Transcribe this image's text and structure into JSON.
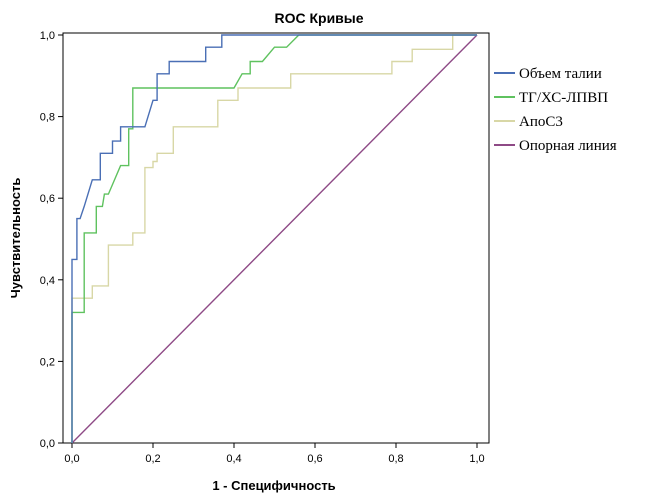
{
  "chart_data": {
    "type": "line",
    "title": "ROC Кривые",
    "xlabel": "1 - Специфичность",
    "ylabel": "Чувствительность",
    "xlim": [
      0,
      1
    ],
    "ylim": [
      0,
      1
    ],
    "x_ticks": [
      "0,0",
      "0,2",
      "0,4",
      "0,6",
      "0,8",
      "1,0"
    ],
    "y_ticks": [
      "0,0",
      "0,2",
      "0,4",
      "0,6",
      "0,8",
      "1,0"
    ],
    "grid": false,
    "legend_position": "right",
    "series": [
      {
        "name": "Объем талии",
        "color": "#4a6fb5",
        "points": [
          [
            0,
            0
          ],
          [
            0,
            0.45
          ],
          [
            0.012,
            0.45
          ],
          [
            0.012,
            0.55
          ],
          [
            0.02,
            0.55
          ],
          [
            0.03,
            0.58
          ],
          [
            0.05,
            0.645
          ],
          [
            0.07,
            0.645
          ],
          [
            0.07,
            0.71
          ],
          [
            0.1,
            0.71
          ],
          [
            0.1,
            0.74
          ],
          [
            0.12,
            0.74
          ],
          [
            0.12,
            0.775
          ],
          [
            0.18,
            0.775
          ],
          [
            0.2,
            0.84
          ],
          [
            0.21,
            0.84
          ],
          [
            0.21,
            0.905
          ],
          [
            0.24,
            0.905
          ],
          [
            0.24,
            0.935
          ],
          [
            0.33,
            0.935
          ],
          [
            0.33,
            0.97
          ],
          [
            0.37,
            0.97
          ],
          [
            0.37,
            1.0
          ],
          [
            1.0,
            1.0
          ]
        ]
      },
      {
        "name": "ТГ/ХС-ЛПВП",
        "color": "#5fc25f",
        "points": [
          [
            0,
            0
          ],
          [
            0,
            0.32
          ],
          [
            0.03,
            0.32
          ],
          [
            0.03,
            0.515
          ],
          [
            0.06,
            0.515
          ],
          [
            0.06,
            0.58
          ],
          [
            0.075,
            0.58
          ],
          [
            0.08,
            0.61
          ],
          [
            0.09,
            0.61
          ],
          [
            0.12,
            0.68
          ],
          [
            0.14,
            0.68
          ],
          [
            0.14,
            0.77
          ],
          [
            0.15,
            0.77
          ],
          [
            0.15,
            0.87
          ],
          [
            0.4,
            0.87
          ],
          [
            0.42,
            0.905
          ],
          [
            0.44,
            0.905
          ],
          [
            0.44,
            0.935
          ],
          [
            0.47,
            0.935
          ],
          [
            0.5,
            0.97
          ],
          [
            0.53,
            0.97
          ],
          [
            0.56,
            1.0
          ],
          [
            1.0,
            1.0
          ]
        ]
      },
      {
        "name": "АпоС3",
        "color": "#d8d7a6",
        "points": [
          [
            0,
            0
          ],
          [
            0,
            0.355
          ],
          [
            0.05,
            0.355
          ],
          [
            0.05,
            0.385
          ],
          [
            0.09,
            0.385
          ],
          [
            0.09,
            0.485
          ],
          [
            0.15,
            0.485
          ],
          [
            0.15,
            0.515
          ],
          [
            0.18,
            0.515
          ],
          [
            0.18,
            0.675
          ],
          [
            0.2,
            0.675
          ],
          [
            0.2,
            0.69
          ],
          [
            0.21,
            0.69
          ],
          [
            0.21,
            0.71
          ],
          [
            0.25,
            0.71
          ],
          [
            0.25,
            0.775
          ],
          [
            0.36,
            0.775
          ],
          [
            0.36,
            0.84
          ],
          [
            0.41,
            0.84
          ],
          [
            0.41,
            0.87
          ],
          [
            0.54,
            0.87
          ],
          [
            0.54,
            0.905
          ],
          [
            0.79,
            0.905
          ],
          [
            0.79,
            0.935
          ],
          [
            0.84,
            0.935
          ],
          [
            0.84,
            0.965
          ],
          [
            0.94,
            0.965
          ],
          [
            0.94,
            1.0
          ],
          [
            1.0,
            1.0
          ]
        ]
      },
      {
        "name": "Опорная линия",
        "color": "#8e4a86",
        "points": [
          [
            0,
            0
          ],
          [
            1,
            1
          ]
        ]
      }
    ]
  }
}
